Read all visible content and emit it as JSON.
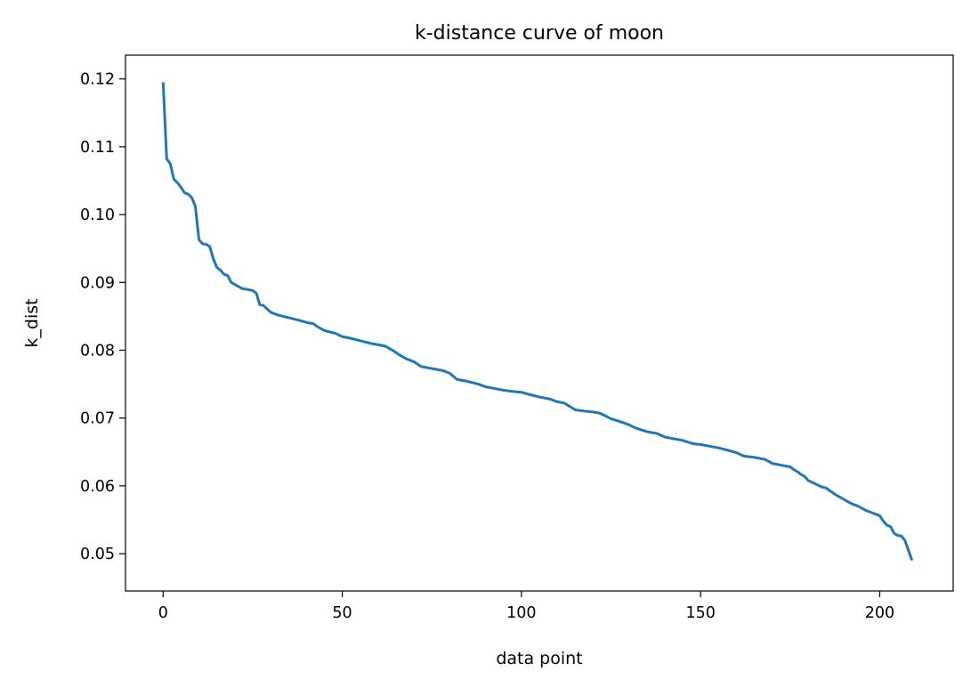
{
  "chart_data": {
    "type": "line",
    "title": "k-distance curve of moon",
    "xlabel": "data point",
    "ylabel": "k_dist",
    "xlim": [
      -10.5,
      220.5
    ],
    "ylim": [
      0.0445,
      0.1235
    ],
    "xticks": [
      0,
      50,
      100,
      150,
      200
    ],
    "xtick_labels": [
      "0",
      "50",
      "100",
      "150",
      "200"
    ],
    "yticks": [
      0.05,
      0.06,
      0.07,
      0.08,
      0.09,
      0.1,
      0.11,
      0.12
    ],
    "ytick_labels": [
      "0.05",
      "0.06",
      "0.07",
      "0.08",
      "0.09",
      "0.10",
      "0.11",
      "0.12"
    ],
    "grid": false,
    "series": [
      {
        "color": "#1f77b4",
        "x": [
          0,
          1,
          2,
          3,
          4,
          5,
          6,
          7,
          8,
          9,
          10,
          11,
          12,
          13,
          14,
          15,
          16,
          17,
          18,
          19,
          20,
          22,
          25,
          26,
          27,
          28,
          30,
          32,
          35,
          38,
          40,
          42,
          43,
          45,
          48,
          50,
          52,
          55,
          58,
          60,
          62,
          64,
          66,
          68,
          70,
          72,
          75,
          78,
          80,
          82,
          85,
          88,
          90,
          92,
          95,
          98,
          100,
          102,
          105,
          108,
          110,
          112,
          115,
          118,
          120,
          122,
          125,
          128,
          130,
          132,
          135,
          138,
          140,
          142,
          145,
          148,
          150,
          152,
          155,
          158,
          160,
          162,
          165,
          168,
          170,
          172,
          175,
          176,
          177,
          178,
          179,
          180,
          182,
          184,
          185,
          186,
          188,
          190,
          192,
          194,
          196,
          198,
          200,
          201,
          202,
          203,
          204,
          205,
          206,
          207,
          208,
          209
        ],
        "y": [
          0.1195,
          0.1082,
          0.1075,
          0.1052,
          0.1047,
          0.104,
          0.1032,
          0.103,
          0.1025,
          0.1012,
          0.0963,
          0.0957,
          0.0956,
          0.0953,
          0.0935,
          0.0922,
          0.0918,
          0.0912,
          0.091,
          0.09,
          0.0897,
          0.0891,
          0.0888,
          0.0884,
          0.0867,
          0.0866,
          0.0856,
          0.0852,
          0.0848,
          0.0844,
          0.0841,
          0.0839,
          0.0835,
          0.0829,
          0.0825,
          0.082,
          0.0818,
          0.0814,
          0.081,
          0.0808,
          0.0806,
          0.08,
          0.0793,
          0.0787,
          0.0783,
          0.0776,
          0.0773,
          0.077,
          0.0766,
          0.0757,
          0.0754,
          0.075,
          0.0746,
          0.0744,
          0.0741,
          0.0739,
          0.0738,
          0.0735,
          0.0731,
          0.0728,
          0.0724,
          0.0722,
          0.0712,
          0.071,
          0.0709,
          0.0707,
          0.0699,
          0.0694,
          0.069,
          0.0685,
          0.068,
          0.0677,
          0.0672,
          0.067,
          0.0667,
          0.0662,
          0.0661,
          0.0659,
          0.0656,
          0.0652,
          0.0649,
          0.0644,
          0.0642,
          0.0639,
          0.0633,
          0.0631,
          0.0628,
          0.0624,
          0.0621,
          0.0617,
          0.0614,
          0.0608,
          0.0603,
          0.0598,
          0.0597,
          0.0593,
          0.0586,
          0.058,
          0.0574,
          0.057,
          0.0564,
          0.056,
          0.0556,
          0.0548,
          0.0542,
          0.054,
          0.053,
          0.0527,
          0.0526,
          0.052,
          0.0505,
          0.049
        ]
      }
    ]
  }
}
